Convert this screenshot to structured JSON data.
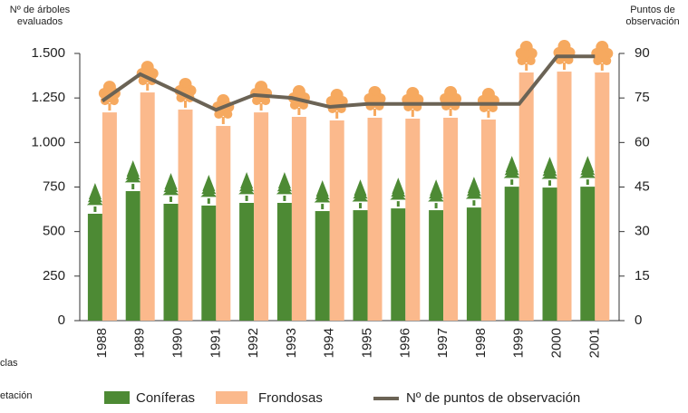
{
  "chart_data": {
    "type": "bar",
    "y_axis_label": "Nº de árboles\nevaluados",
    "y2_axis_label": "Puntos de\nobservación",
    "categories": [
      "1988",
      "1989",
      "1990",
      "1991",
      "1992",
      "1993",
      "1994",
      "1995",
      "1996",
      "1997",
      "1998",
      "1999",
      "2000",
      "2001"
    ],
    "series": [
      {
        "name": "Coníferas",
        "color": "#4d8a34",
        "values": [
          600,
          727,
          656,
          646,
          661,
          661,
          615,
          620,
          630,
          620,
          635,
          752,
          747,
          752
        ]
      },
      {
        "name": "Frondosas",
        "color": "#fbb98c",
        "values": [
          1169,
          1281,
          1185,
          1093,
          1169,
          1144,
          1124,
          1139,
          1134,
          1139,
          1129,
          1393,
          1398,
          1393
        ]
      },
      {
        "name": "Nº de puntos de observación",
        "color": "#6b6355",
        "type": "line",
        "axis": "y2",
        "values": [
          74,
          83,
          77,
          71,
          76,
          75,
          72,
          73,
          73,
          73,
          73,
          73,
          89,
          89
        ]
      }
    ],
    "ylim": [
      0,
      1500
    ],
    "yticks": [
      0,
      250,
      500,
      750,
      {
        "value": 1000,
        "label": "1.000"
      },
      {
        "value": 1250,
        "label": "1.250"
      },
      {
        "value": 1500,
        "label": "1.500"
      }
    ],
    "y2lim": [
      0,
      90
    ],
    "y2ticks": [
      0,
      15,
      30,
      45,
      60,
      75,
      90
    ],
    "annotations": [
      "clas",
      "etación"
    ]
  }
}
